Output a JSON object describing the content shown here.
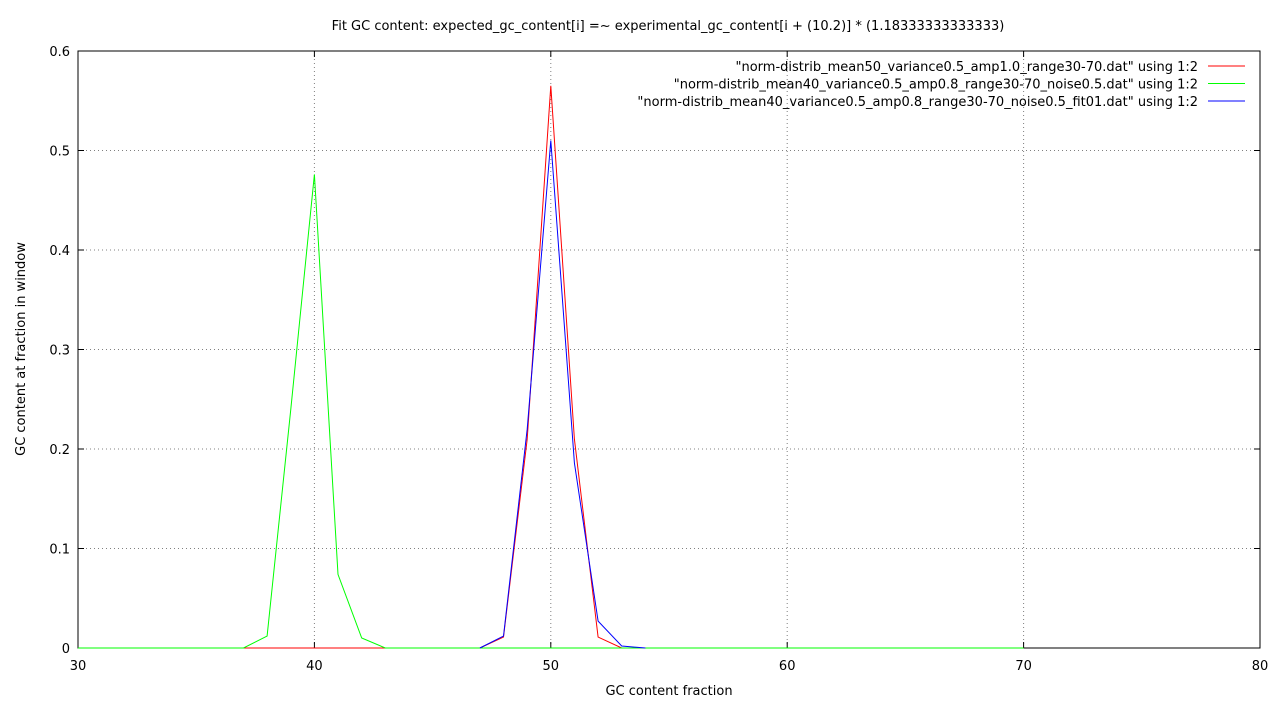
{
  "chart_data": {
    "type": "line",
    "title": "Fit GC content: expected_gc_content[i] =~ experimental_gc_content[i + (10.2)] * (1.18333333333333)",
    "xlabel": "GC content fraction",
    "ylabel": "GC content at fraction in window",
    "xlim": [
      30,
      80
    ],
    "ylim": [
      0,
      0.6
    ],
    "xticks": [
      30,
      40,
      50,
      60,
      70,
      80
    ],
    "yticks": [
      0,
      0.1,
      0.2,
      0.3,
      0.4,
      0.5,
      0.6
    ],
    "xtick_labels": [
      "30",
      "40",
      "50",
      "60",
      "70",
      "80"
    ],
    "ytick_labels": [
      "0",
      "0.1",
      "0.2",
      "0.3",
      "0.4",
      "0.5",
      "0.6"
    ],
    "grid": true,
    "legend_position": "top-right",
    "series": [
      {
        "name": "\"norm-distrib_mean50_variance0.5_amp1.0_range30-70.dat\" using 1:2",
        "color": "#ff0000",
        "x": [
          30,
          31,
          32,
          33,
          34,
          35,
          36,
          37,
          38,
          39,
          40,
          41,
          42,
          43,
          44,
          45,
          46,
          47,
          48,
          49,
          50,
          51,
          52,
          53,
          54,
          55,
          56,
          57,
          58,
          59,
          60,
          61,
          62,
          63,
          64,
          65,
          66,
          67,
          68,
          69,
          70
        ],
        "y": [
          0,
          0,
          0,
          0,
          0,
          0,
          0,
          0,
          0,
          0,
          0,
          0,
          0,
          0,
          0,
          0,
          0,
          0,
          0.011,
          0.21,
          0.565,
          0.21,
          0.011,
          0,
          0,
          0,
          0,
          0,
          0,
          0,
          0,
          0,
          0,
          0,
          0,
          0,
          0,
          0,
          0,
          0,
          0
        ]
      },
      {
        "name": "\"norm-distrib_mean40_variance0.5_amp0.8_range30-70_noise0.5.dat\" using 1:2",
        "color": "#00ff00",
        "x": [
          30,
          31,
          32,
          33,
          34,
          35,
          36,
          37,
          38,
          39,
          40,
          41,
          42,
          43,
          44,
          45,
          46,
          47,
          48,
          49,
          50,
          51,
          52,
          53,
          54,
          55,
          56,
          57,
          58,
          59,
          60,
          61,
          62,
          63,
          64,
          65,
          66,
          67,
          68,
          69,
          70
        ],
        "y": [
          0,
          0,
          0,
          0,
          0,
          0,
          0,
          0,
          0.012,
          0.24,
          0.476,
          0.074,
          0.01,
          0,
          0,
          0,
          0,
          0,
          0,
          0,
          0,
          0,
          0,
          0,
          0,
          0,
          0,
          0,
          0,
          0,
          0,
          0,
          0,
          0,
          0,
          0,
          0,
          0,
          0,
          0,
          0
        ]
      },
      {
        "name": "\"norm-distrib_mean40_variance0.5_amp0.8_range30-70_noise0.5_fit01.dat\" using 1:2",
        "color": "#0000ff",
        "x": [
          47,
          48,
          49,
          50,
          51,
          52,
          53,
          54
        ],
        "y": [
          0,
          0.012,
          0.22,
          0.51,
          0.186,
          0.027,
          0.002,
          0
        ]
      }
    ]
  }
}
